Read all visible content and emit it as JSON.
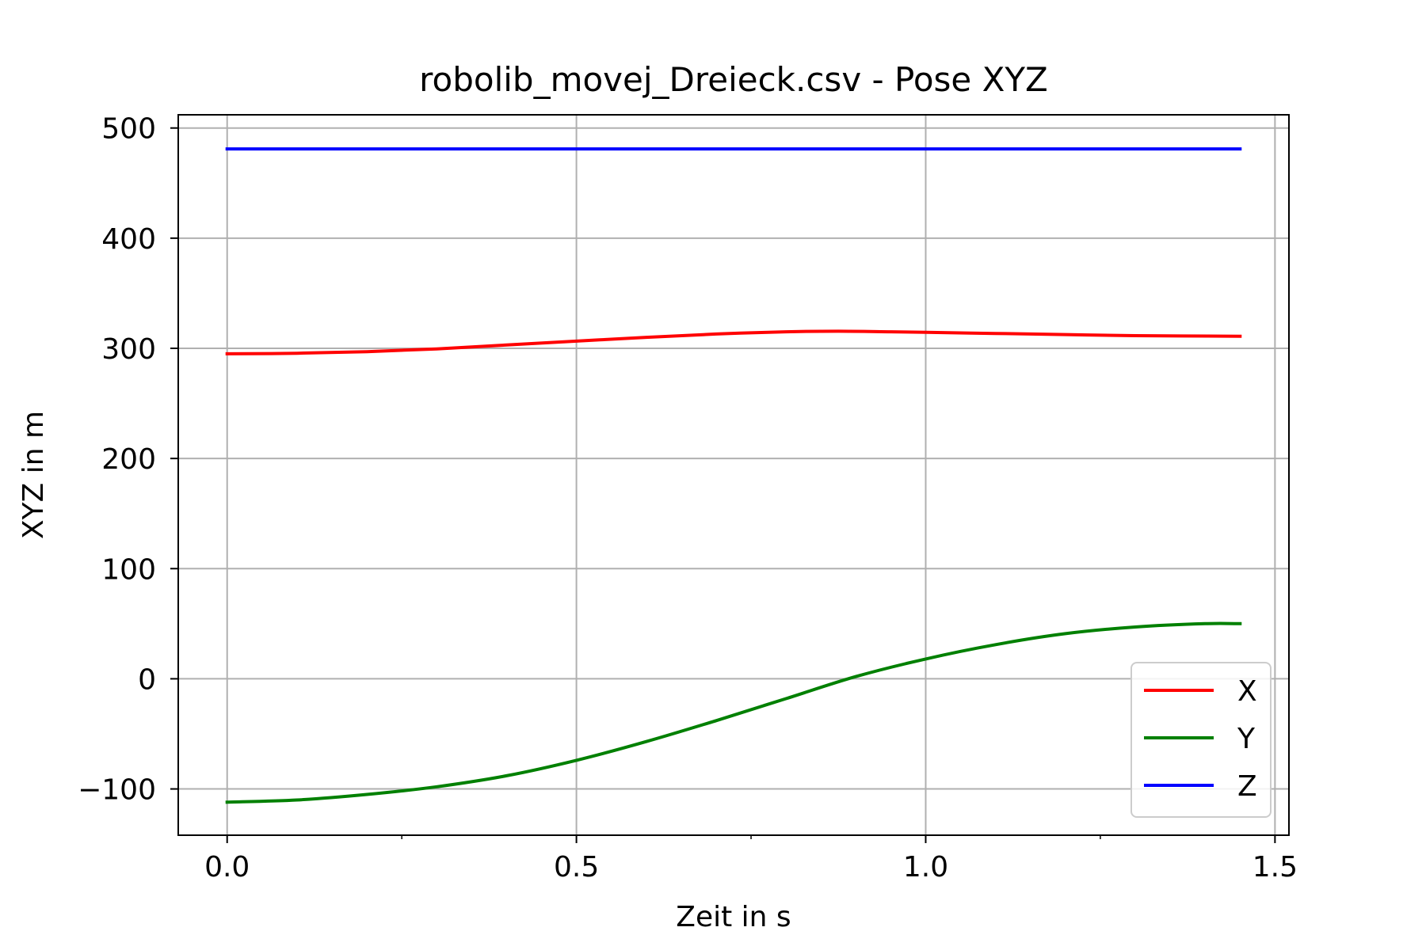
{
  "chart_data": {
    "type": "line",
    "title": "robolib_movej_Dreieck.csv - Pose XYZ",
    "xlabel": "Zeit in s",
    "ylabel": "XYZ in m",
    "xlim": [
      -0.07,
      1.52
    ],
    "ylim": [
      -142,
      512
    ],
    "xticks": [
      0.0,
      0.5,
      1.0,
      1.5
    ],
    "xtick_labels": [
      "0.0",
      "0.5",
      "1.0",
      "1.5"
    ],
    "xminor_ticks": [
      0.25,
      0.75,
      1.25
    ],
    "yticks": [
      -100,
      0,
      100,
      200,
      300,
      400,
      500
    ],
    "ytick_labels": [
      "−100",
      "0",
      "100",
      "200",
      "300",
      "400",
      "500"
    ],
    "grid": true,
    "legend_position": "bottom-right",
    "series": [
      {
        "name": "X",
        "color": "#ff0000",
        "x": [
          0.0,
          0.1,
          0.2,
          0.3,
          0.4,
          0.5,
          0.6,
          0.7,
          0.8,
          0.875,
          0.95,
          1.0,
          1.1,
          1.2,
          1.3,
          1.45
        ],
        "y": [
          295,
          295.5,
          297,
          299.5,
          303,
          306.5,
          310,
          313,
          315,
          315.5,
          315,
          314.5,
          313.5,
          312.5,
          311.5,
          311
        ]
      },
      {
        "name": "Y",
        "color": "#008000",
        "x": [
          0.0,
          0.1,
          0.2,
          0.3,
          0.4,
          0.5,
          0.6,
          0.7,
          0.8,
          0.9,
          1.0,
          1.1,
          1.2,
          1.3,
          1.4,
          1.45
        ],
        "y": [
          -112,
          -110,
          -105,
          -98,
          -88,
          -74,
          -57,
          -38,
          -18,
          2,
          18,
          31,
          41,
          47,
          50,
          50
        ]
      },
      {
        "name": "Z",
        "color": "#0000ff",
        "x": [
          0.0,
          1.45
        ],
        "y": [
          481,
          481
        ]
      }
    ]
  }
}
